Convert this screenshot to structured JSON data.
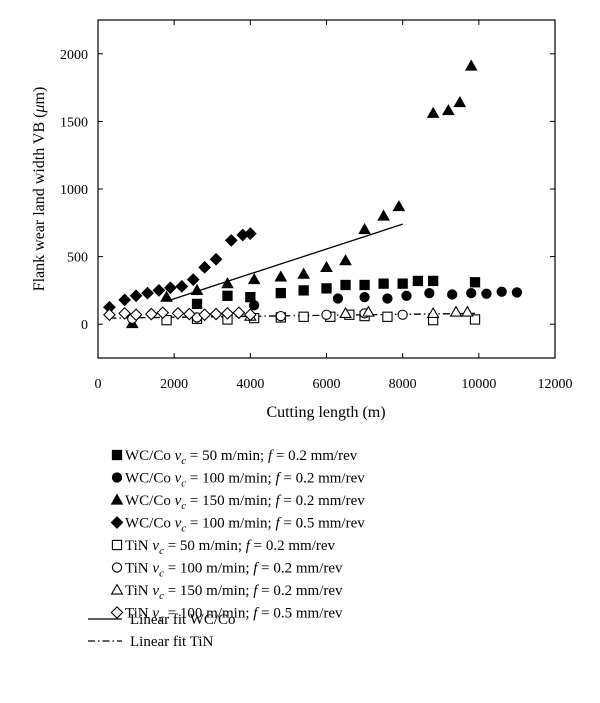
{
  "chart_data": {
    "type": "scatter",
    "xlabel": "Cutting length (m)",
    "ylabel": "Flank wear land width VB (μm)",
    "xlim": [
      0,
      12000
    ],
    "ylim": [
      -250,
      2250
    ],
    "xticks": [
      0,
      2000,
      4000,
      6000,
      8000,
      10000,
      12000
    ],
    "yticks": [
      0,
      500,
      1000,
      1500,
      2000
    ],
    "grid": false,
    "legend_position": "below",
    "series": [
      {
        "name": "WC/Co v_c = 50 m/min; f = 0.2 mm/rev",
        "marker": "square-filled",
        "x": [
          2600,
          3400,
          4000,
          4800,
          5400,
          6000,
          6500,
          7000,
          7500,
          8000,
          8400,
          8800,
          9900
        ],
        "y": [
          150,
          210,
          200,
          230,
          250,
          265,
          290,
          290,
          300,
          300,
          320,
          320,
          310
        ]
      },
      {
        "name": "WC/Co v_c = 100 m/min; f = 0.2 mm/rev",
        "marker": "circle-filled",
        "x": [
          4100,
          6300,
          7000,
          7600,
          8100,
          8700,
          9300,
          9800,
          10200,
          10600,
          11000
        ],
        "y": [
          140,
          190,
          200,
          190,
          210,
          230,
          220,
          230,
          225,
          240,
          235
        ]
      },
      {
        "name": "WC/Co v_c = 150 m/min; f = 0.2 mm/rev",
        "marker": "triangle-filled",
        "x": [
          900,
          1800,
          2600,
          3400,
          4100,
          4800,
          5400,
          6000,
          6500,
          7000,
          7500,
          7900,
          8800,
          9200,
          9500,
          9800
        ],
        "y": [
          5,
          200,
          250,
          300,
          330,
          350,
          370,
          420,
          470,
          700,
          800,
          870,
          1560,
          1580,
          1640,
          1910
        ]
      },
      {
        "name": "WC/Co v_c = 100 m/min; f = 0.5 mm/rev",
        "marker": "diamond-filled",
        "x": [
          300,
          700,
          1000,
          1300,
          1600,
          1900,
          2200,
          2500,
          2800,
          3100,
          3500,
          3800,
          4000
        ],
        "y": [
          125,
          180,
          210,
          230,
          250,
          270,
          280,
          330,
          420,
          480,
          620,
          660,
          670
        ]
      },
      {
        "name": "TiN v_c = 50 m/min; f = 0.2 mm/rev",
        "marker": "square-open",
        "x": [
          1800,
          2600,
          3400,
          4100,
          4800,
          5400,
          6100,
          6600,
          7000,
          7600,
          8800,
          9900
        ],
        "y": [
          30,
          40,
          35,
          45,
          50,
          55,
          55,
          70,
          60,
          55,
          30,
          35
        ]
      },
      {
        "name": "TiN v_c = 100 m/min; f = 0.2 mm/rev",
        "marker": "circle-open",
        "x": [
          900,
          2600,
          4800,
          6000,
          7000,
          8000
        ],
        "y": [
          40,
          50,
          60,
          70,
          80,
          70
        ]
      },
      {
        "name": "TiN v_c = 150 m/min; f = 0.2 mm/rev",
        "marker": "triangle-open",
        "x": [
          4000,
          6500,
          7100,
          8800,
          9400,
          9700
        ],
        "y": [
          60,
          80,
          90,
          80,
          90,
          90
        ]
      },
      {
        "name": "TiN v_c = 100 m/min; f = 0.5 mm/rev",
        "marker": "diamond-open",
        "x": [
          300,
          700,
          1000,
          1400,
          1700,
          2100,
          2400,
          2800,
          3100,
          3400,
          3700,
          4000
        ],
        "y": [
          70,
          80,
          70,
          75,
          85,
          80,
          75,
          70,
          75,
          80,
          85,
          70
        ]
      }
    ],
    "fits": [
      {
        "name": "Linear fit WC/Co",
        "style": "solid",
        "x": [
          1800,
          8000
        ],
        "y": [
          170,
          740
        ]
      },
      {
        "name": "Linear fit TiN",
        "style": "dash-dot",
        "x": [
          300,
          9900
        ],
        "y": [
          45,
          80
        ]
      }
    ]
  },
  "legend": [
    {
      "marker": "square-filled",
      "name": "WC/Co",
      "speed": "50",
      "feed": "0.2"
    },
    {
      "marker": "circle-filled",
      "name": "WC/Co",
      "speed": "100",
      "feed": "0.2"
    },
    {
      "marker": "triangle-filled",
      "name": "WC/Co",
      "speed": "150",
      "feed": "0.2"
    },
    {
      "marker": "diamond-filled",
      "name": "WC/Co",
      "speed": "100",
      "feed": "0.5"
    },
    {
      "marker": "square-open",
      "name": "TiN",
      "speed": "50",
      "feed": "0.2"
    },
    {
      "marker": "circle-open",
      "name": "TiN",
      "speed": "100",
      "feed": "0.2"
    },
    {
      "marker": "triangle-open",
      "name": "TiN",
      "speed": "150",
      "feed": "0.2"
    },
    {
      "marker": "diamond-open",
      "name": "TiN",
      "speed": "100",
      "feed": "0.5"
    }
  ],
  "legend_fits": [
    {
      "style": "solid",
      "label": "Linear fit WC/Co"
    },
    {
      "style": "dash-dot",
      "label": "Linear fit TiN"
    }
  ],
  "legend_units": {
    "speed_symbol": "v",
    "speed_sub": "c",
    "speed_unit": "m/min",
    "feed_symbol": "f",
    "feed_unit": "mm/rev"
  }
}
